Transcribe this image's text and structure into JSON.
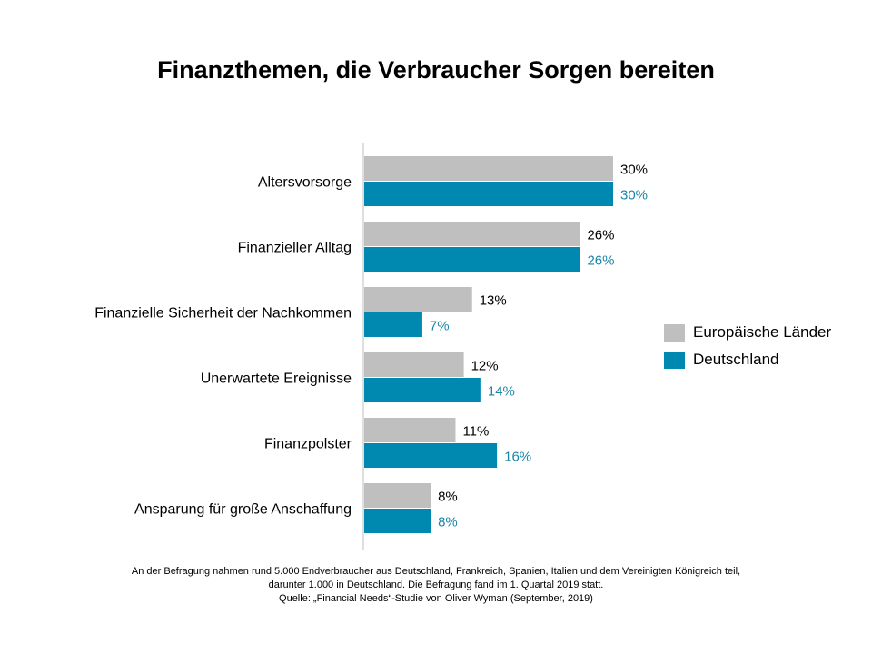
{
  "chart_data": {
    "type": "bar",
    "orientation": "horizontal",
    "title": "Finanzthemen, die Verbraucher Sorgen bereiten",
    "categories": [
      "Altersvorsorge",
      "Finanzieller Alltag",
      "Finanzielle Sicherheit der Nachkommen",
      "Unerwartete Ereignisse",
      "Finanzpolster",
      "Ansparung für große Anschaffung"
    ],
    "series": [
      {
        "name": "Europäische Länder",
        "values": [
          30,
          26,
          13,
          12,
          11,
          8
        ],
        "color": "#bfbfbf",
        "label_color": "#000000"
      },
      {
        "name": "Deutschland",
        "values": [
          30,
          26,
          7,
          14,
          16,
          8
        ],
        "color": "#0089b0",
        "label_color": "#1a86a8"
      }
    ],
    "value_suffix": "%",
    "xlim": [
      0,
      30
    ],
    "grid": false,
    "legend_position": "right"
  },
  "footnote": {
    "line1": "An der Befragung nahmen rund 5.000 Endverbraucher aus Deutschland, Frankreich, Spanien, Italien und dem Vereinigten Königreich teil,",
    "line2": "darunter 1.000 in Deutschland. Die Befragung fand im 1. Quartal 2019 statt.",
    "line3": "Quelle: „Financial Needs“-Studie von Oliver Wyman (September, 2019)"
  }
}
